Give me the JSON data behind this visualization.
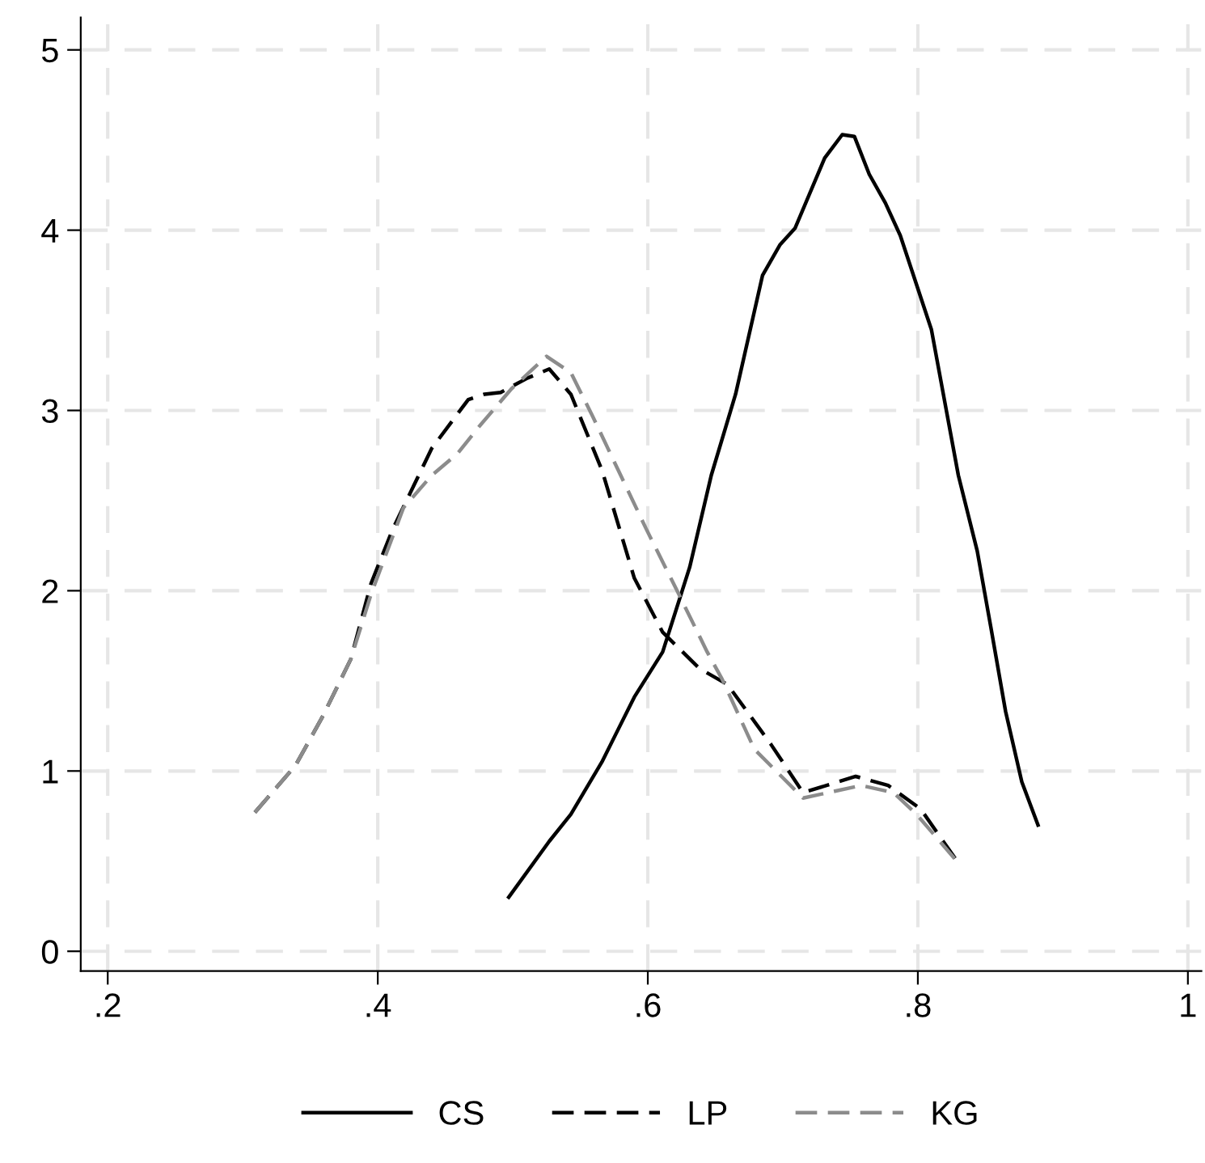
{
  "chart_data": {
    "type": "line",
    "xlim": [
      0.18,
      1.01
    ],
    "ylim": [
      -0.11,
      5.18
    ],
    "xticks": [
      {
        "value": 0.2,
        "label": ".2"
      },
      {
        "value": 0.4,
        "label": ".4"
      },
      {
        "value": 0.6,
        "label": ".6"
      },
      {
        "value": 0.8,
        "label": ".8"
      },
      1
    ],
    "yticks": [
      0,
      1,
      2,
      3,
      4,
      5
    ],
    "grid": true,
    "legend": "bottom",
    "marker": "none",
    "series": [
      {
        "name": "CS",
        "color": "#000000",
        "line_style": "solid",
        "x": [
          0.497,
          0.527,
          0.543,
          0.566,
          0.59,
          0.611,
          0.631,
          0.647,
          0.665,
          0.685,
          0.698,
          0.709,
          0.731,
          0.744,
          0.753,
          0.764,
          0.776,
          0.787,
          0.81,
          0.83,
          0.844,
          0.854,
          0.865,
          0.877,
          0.889
        ],
        "values": [
          0.3,
          0.61,
          0.76,
          1.05,
          1.41,
          1.66,
          2.13,
          2.64,
          3.09,
          3.75,
          3.92,
          4.01,
          4.4,
          4.53,
          4.52,
          4.31,
          4.15,
          3.97,
          3.45,
          2.64,
          2.22,
          1.8,
          1.33,
          0.94,
          0.7
        ]
      },
      {
        "name": "LP",
        "color": "#000000",
        "line_style": "dashed",
        "x": [
          0.309,
          0.339,
          0.359,
          0.38,
          0.395,
          0.411,
          0.44,
          0.467,
          0.479,
          0.491,
          0.511,
          0.527,
          0.543,
          0.566,
          0.59,
          0.611,
          0.638,
          0.659,
          0.691,
          0.715,
          0.754,
          0.778,
          0.802,
          0.83
        ],
        "values": [
          0.77,
          1.03,
          1.3,
          1.62,
          2.04,
          2.34,
          2.79,
          3.06,
          3.09,
          3.1,
          3.18,
          3.23,
          3.09,
          2.67,
          2.07,
          1.77,
          1.57,
          1.48,
          1.15,
          0.88,
          0.97,
          0.92,
          0.79,
          0.49
        ]
      },
      {
        "name": "KG",
        "color": "#8c8c8c",
        "line_style": "dashed",
        "x": [
          0.309,
          0.339,
          0.359,
          0.38,
          0.395,
          0.419,
          0.44,
          0.459,
          0.475,
          0.499,
          0.525,
          0.543,
          0.559,
          0.578,
          0.599,
          0.623,
          0.644,
          0.655,
          0.679,
          0.715,
          0.758,
          0.782,
          0.799,
          0.83
        ],
        "values": [
          0.77,
          1.03,
          1.3,
          1.62,
          1.98,
          2.46,
          2.64,
          2.76,
          2.91,
          3.12,
          3.3,
          3.21,
          2.97,
          2.67,
          2.34,
          1.98,
          1.66,
          1.51,
          1.12,
          0.85,
          0.92,
          0.88,
          0.76,
          0.49
        ]
      }
    ]
  }
}
